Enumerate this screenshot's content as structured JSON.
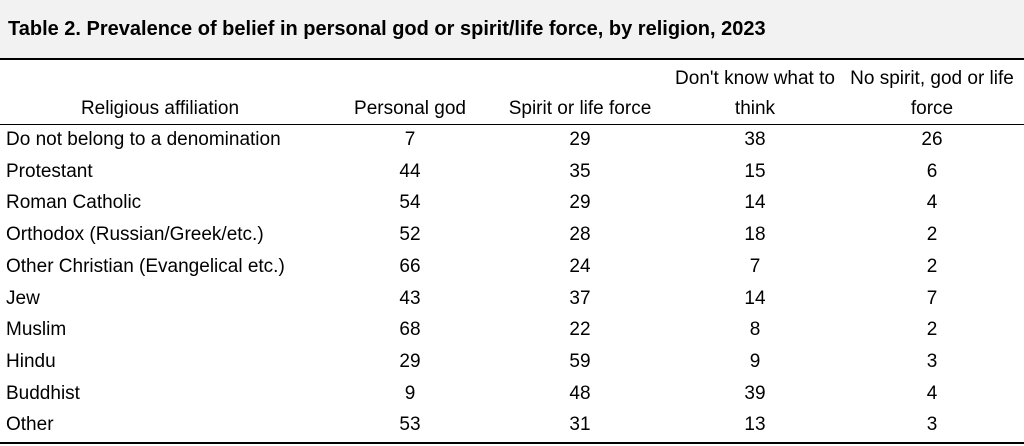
{
  "title": "Table 2. Prevalence of belief in personal god or spirit/life force, by religion, 2023",
  "columns": [
    "Religious affiliation",
    "Personal god",
    "Spirit or life force",
    "Don't know what to think",
    "No spirit, god or life force"
  ],
  "rows": [
    {
      "label": "Do not belong to a denomination",
      "values": [
        "7",
        "29",
        "38",
        "26"
      ]
    },
    {
      "label": "Protestant",
      "values": [
        "44",
        "35",
        "15",
        "6"
      ]
    },
    {
      "label": "Roman Catholic",
      "values": [
        "54",
        "29",
        "14",
        "4"
      ]
    },
    {
      "label": "Orthodox (Russian/Greek/etc.)",
      "values": [
        "52",
        "28",
        "18",
        "2"
      ]
    },
    {
      "label": "Other Christian (Evangelical etc.)",
      "values": [
        "66",
        "24",
        "7",
        "2"
      ]
    },
    {
      "label": "Jew",
      "values": [
        "43",
        "37",
        "14",
        "7"
      ]
    },
    {
      "label": "Muslim",
      "values": [
        "68",
        "22",
        "8",
        "2"
      ]
    },
    {
      "label": "Hindu",
      "values": [
        "29",
        "59",
        "9",
        "3"
      ]
    },
    {
      "label": "Buddhist",
      "values": [
        "9",
        "48",
        "39",
        "4"
      ]
    },
    {
      "label": "Other",
      "values": [
        "53",
        "31",
        "13",
        "3"
      ]
    }
  ],
  "chart_data": {
    "type": "table",
    "title": "Table 2. Prevalence of belief in personal god or spirit/life force, by religion, 2023",
    "categories": [
      "Do not belong to a denomination",
      "Protestant",
      "Roman Catholic",
      "Orthodox (Russian/Greek/etc.)",
      "Other Christian (Evangelical etc.)",
      "Jew",
      "Muslim",
      "Hindu",
      "Buddhist",
      "Other"
    ],
    "series": [
      {
        "name": "Personal god",
        "values": [
          7,
          44,
          54,
          52,
          66,
          43,
          68,
          29,
          9,
          53
        ]
      },
      {
        "name": "Spirit or life force",
        "values": [
          29,
          35,
          29,
          28,
          24,
          37,
          22,
          59,
          48,
          31
        ]
      },
      {
        "name": "Don't know what to think",
        "values": [
          38,
          15,
          14,
          18,
          7,
          14,
          8,
          9,
          39,
          13
        ]
      },
      {
        "name": "No spirit, god or life force",
        "values": [
          26,
          6,
          4,
          2,
          2,
          7,
          2,
          3,
          4,
          3
        ]
      }
    ]
  }
}
